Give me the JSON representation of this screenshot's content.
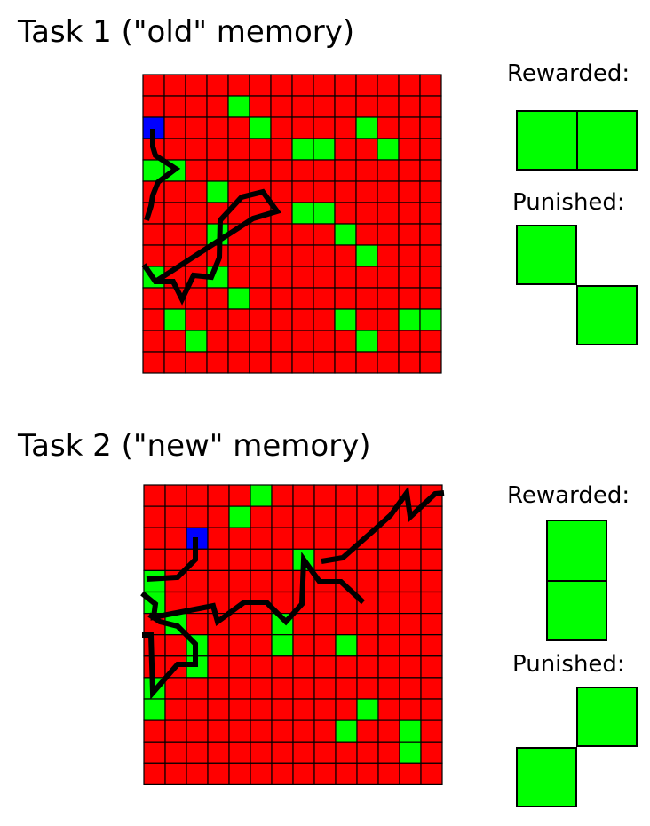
{
  "colors": {
    "cell": "#ff0000",
    "target": "#00ff00",
    "start": "#0000ff",
    "gridline": "#000000",
    "path": "#000000"
  },
  "grid_size": 14,
  "tasks": [
    {
      "title": "Task 1 (\"old\" memory)",
      "rewarded_label": "Rewarded:",
      "punished_label": "Punished:",
      "rewarded_pattern": "horizontal-pair",
      "punished_pattern": "diagonal-down",
      "start_cell": [
        0,
        2
      ],
      "green_cells": [
        [
          4,
          1
        ],
        [
          5,
          2
        ],
        [
          10,
          2
        ],
        [
          7,
          3
        ],
        [
          8,
          3
        ],
        [
          11,
          3
        ],
        [
          0,
          4
        ],
        [
          1,
          4
        ],
        [
          3,
          5
        ],
        [
          7,
          6
        ],
        [
          8,
          6
        ],
        [
          3,
          7
        ],
        [
          9,
          7
        ],
        [
          10,
          8
        ],
        [
          0,
          9
        ],
        [
          3,
          9
        ],
        [
          4,
          10
        ],
        [
          1,
          11
        ],
        [
          9,
          11
        ],
        [
          12,
          11
        ],
        [
          13,
          11
        ],
        [
          2,
          12
        ],
        [
          10,
          12
        ]
      ]
    },
    {
      "title": "Task 2 (\"new\" memory)",
      "rewarded_label": "Rewarded:",
      "punished_label": "Punished:",
      "rewarded_pattern": "vertical-pair",
      "punished_pattern": "diagonal-up",
      "start_cell": [
        2,
        2
      ],
      "green_cells": [
        [
          5,
          0
        ],
        [
          4,
          1
        ],
        [
          0,
          4
        ],
        [
          7,
          3
        ],
        [
          0,
          5
        ],
        [
          1,
          6
        ],
        [
          6,
          6
        ],
        [
          6,
          7
        ],
        [
          9,
          7
        ],
        [
          2,
          7
        ],
        [
          2,
          8
        ],
        [
          0,
          9
        ],
        [
          0,
          10
        ],
        [
          10,
          10
        ],
        [
          9,
          11
        ],
        [
          12,
          11
        ],
        [
          12,
          12
        ]
      ]
    }
  ]
}
